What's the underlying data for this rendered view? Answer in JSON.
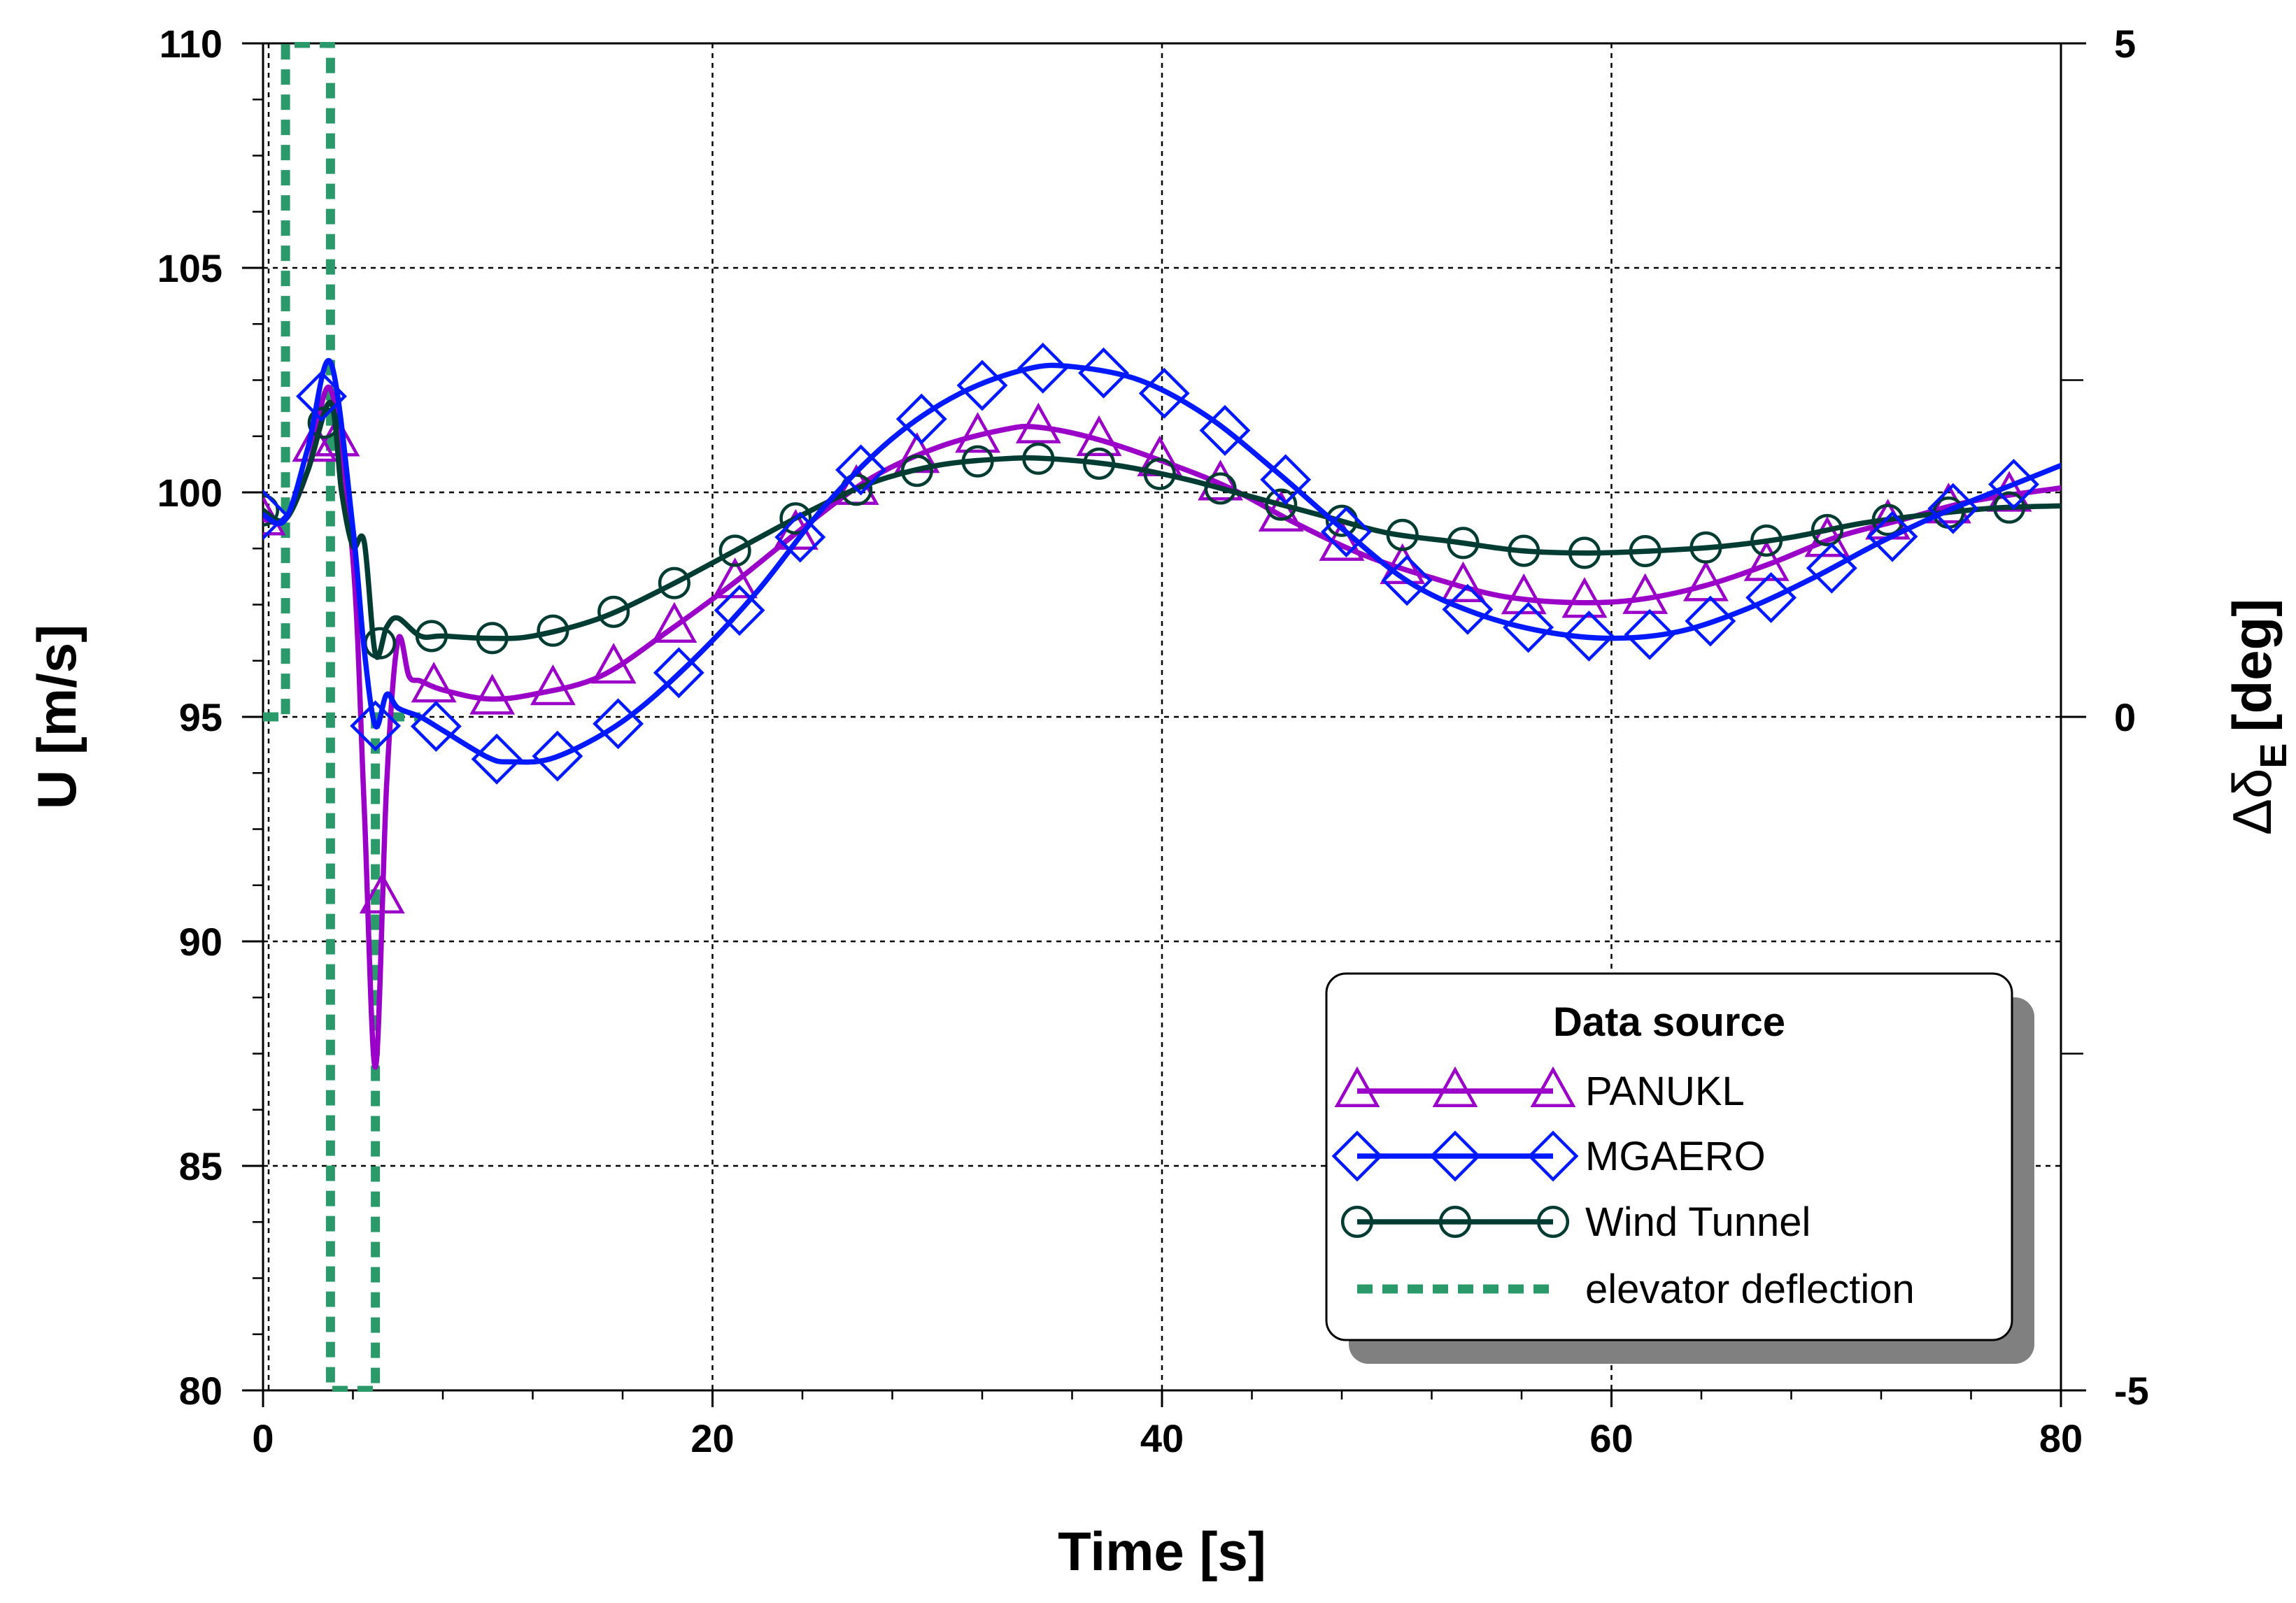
{
  "chart_data": {
    "type": "line",
    "xlabel": "Time [s]",
    "ylabel": "U [m/s]",
    "y2label_main": "Δδ",
    "y2label_sub": "E",
    "y2label_unit": "[deg]",
    "xlim": [
      0,
      80
    ],
    "ylim": [
      80,
      110
    ],
    "y2lim": [
      -5,
      5
    ],
    "xticks": [
      "0",
      "20",
      "40",
      "60",
      "80"
    ],
    "xtick_values": [
      0,
      20,
      40,
      60,
      80
    ],
    "yticks": [
      "80",
      "85",
      "90",
      "95",
      "100",
      "105",
      "110"
    ],
    "ytick_values": [
      80,
      85,
      90,
      95,
      100,
      105,
      110
    ],
    "y2ticks": [
      "-5",
      "0",
      "5"
    ],
    "y2tick_values": [
      -5,
      0,
      5
    ],
    "grid": true,
    "legend": {
      "title": "Data source",
      "position": "bottom-right"
    },
    "series": [
      {
        "name": "PANUKL",
        "color": "#9a00c8",
        "marker": "triangle",
        "axis": "left",
        "x": [
          0,
          1,
          2,
          3,
          4,
          4.5,
          5,
          5.5,
          6,
          6.5,
          7,
          8,
          10,
          12,
          15,
          18,
          21,
          24,
          27,
          30,
          33,
          34.5,
          37,
          40,
          43,
          46,
          49,
          52,
          55,
          58,
          61,
          64,
          67,
          70,
          73,
          76,
          80
        ],
        "y": [
          99.4,
          99.4,
          100.5,
          102.3,
          98.5,
          93,
          87.2,
          93.5,
          96.7,
          95.9,
          95.8,
          95.6,
          95.4,
          95.5,
          95.9,
          96.9,
          98.0,
          99.2,
          100.3,
          101.0,
          101.4,
          101.45,
          101.2,
          100.7,
          100.1,
          99.3,
          98.6,
          98.1,
          97.7,
          97.55,
          97.6,
          97.9,
          98.4,
          99.0,
          99.4,
          99.8,
          100.1
        ],
        "marker_x": [
          0,
          2.3,
          3.3,
          5.3,
          7.6,
          10.2,
          12.9,
          15.6,
          18.3,
          21,
          23.7,
          26.4,
          29.1,
          31.8,
          34.5,
          37.2,
          39.9,
          42.6,
          45.3,
          48,
          50.7,
          53.4,
          56.1,
          58.8,
          61.5,
          64.2,
          66.9,
          69.6,
          72.3,
          75,
          77.7
        ]
      },
      {
        "name": "MGAERO",
        "color": "#0019ff",
        "marker": "diamond",
        "axis": "left",
        "x": [
          0,
          1,
          2,
          3,
          4,
          4.5,
          5,
          5.5,
          6,
          7,
          8,
          10,
          11,
          13,
          16,
          19,
          22,
          25,
          28,
          31,
          34,
          36,
          39,
          42,
          45,
          48,
          51,
          54,
          57,
          60,
          63,
          66,
          69,
          72,
          75,
          78,
          80
        ],
        "y": [
          99.5,
          99.4,
          101.0,
          102.9,
          99.2,
          96.5,
          94.8,
          95.5,
          95.2,
          95.0,
          94.7,
          94.1,
          94.0,
          94.1,
          94.9,
          96.2,
          97.8,
          99.7,
          101.2,
          102.2,
          102.75,
          102.8,
          102.5,
          101.7,
          100.5,
          99.2,
          98.0,
          97.3,
          96.9,
          96.75,
          96.9,
          97.4,
          98.1,
          98.9,
          99.6,
          100.2,
          100.6
        ],
        "marker_x": [
          0,
          2.6,
          5,
          7.7,
          10.4,
          13.1,
          15.8,
          18.5,
          21.2,
          23.9,
          26.6,
          29.3,
          32,
          34.7,
          37.4,
          40.1,
          42.8,
          45.5,
          48.2,
          50.9,
          53.6,
          56.3,
          59,
          61.7,
          64.4,
          67.1,
          69.8,
          72.5,
          75.2,
          77.9
        ]
      },
      {
        "name": "Wind Tunnel",
        "color": "#003c32",
        "marker": "circle",
        "axis": "left",
        "x": [
          0,
          1,
          2,
          3,
          3.5,
          4,
          4.5,
          5,
          5.5,
          6,
          7,
          8,
          10,
          12,
          15,
          18,
          21,
          24,
          27,
          30,
          33,
          35,
          38,
          41,
          44,
          47,
          50,
          53,
          56,
          59,
          62,
          65,
          68,
          71,
          74,
          77,
          80
        ],
        "y": [
          99.6,
          99.4,
          100.5,
          102.0,
          100.0,
          98.8,
          98.9,
          96.4,
          97.0,
          97.2,
          96.8,
          96.8,
          96.75,
          96.8,
          97.2,
          97.9,
          98.7,
          99.5,
          100.2,
          100.6,
          100.75,
          100.75,
          100.6,
          100.3,
          99.9,
          99.5,
          99.1,
          98.9,
          98.7,
          98.65,
          98.7,
          98.8,
          99.0,
          99.3,
          99.5,
          99.65,
          99.7
        ],
        "marker_x": [
          0,
          2.7,
          5.2,
          7.5,
          10.2,
          12.9,
          15.6,
          18.3,
          21,
          23.7,
          26.4,
          29.1,
          31.8,
          34.5,
          37.2,
          39.9,
          42.6,
          45.3,
          48,
          50.7,
          53.4,
          56.1,
          58.8,
          61.5,
          64.2,
          66.9,
          69.6,
          72.3,
          75,
          77.7
        ]
      },
      {
        "name": "elevator deflection",
        "color": "#2a9a6a",
        "marker": "none",
        "dashed": true,
        "axis": "right",
        "x": [
          0,
          1,
          1,
          3,
          3,
          5,
          5,
          7
        ],
        "y": [
          0,
          0,
          5,
          5,
          -5,
          -5,
          0,
          0
        ]
      }
    ]
  }
}
